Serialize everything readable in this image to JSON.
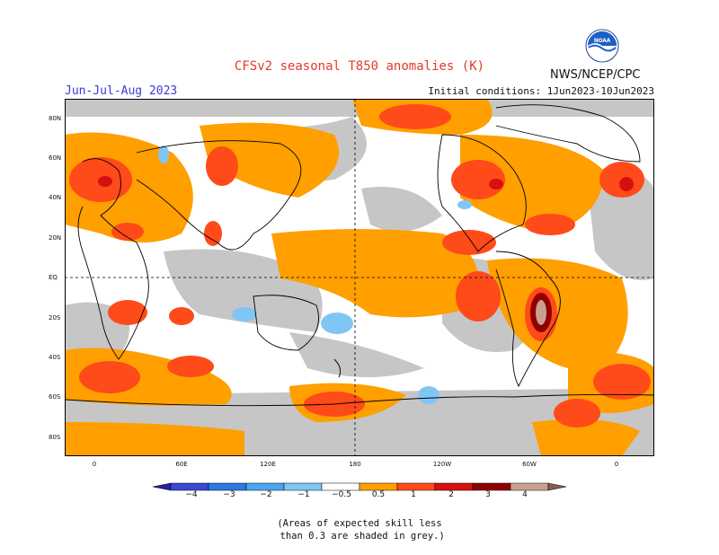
{
  "title": "CFSv2 seasonal T850 anomalies (K)",
  "season": "Jun-Jul-Aug 2023",
  "initial_conditions": "Initial conditions: 1Jun2023-10Jun2023",
  "organization": "NWS/NCEP/CPC",
  "logo_text": "NOAA",
  "lat_labels": [
    "80N",
    "60N",
    "40N",
    "20N",
    "EQ",
    "20S",
    "40S",
    "60S",
    "80S"
  ],
  "lon_labels": [
    "0",
    "60E",
    "120E",
    "180",
    "120W",
    "60W",
    "0"
  ],
  "colorbar": {
    "labels": [
      "−4",
      "−3",
      "−2",
      "−1",
      "−0.5",
      "0.5",
      "1",
      "2",
      "3",
      "4"
    ],
    "colors": [
      "#2a1da6",
      "#3a48d4",
      "#2b78e0",
      "#4aa6f0",
      "#80c6f5",
      "#ffffff",
      "#ff9f00",
      "#ff4a1a",
      "#d61010",
      "#8f0000",
      "#caa090",
      "#8b5a4f"
    ],
    "skill_shade_color": "#c6c6c6"
  },
  "legend_note": "(Areas of expected skill less\n than 0.3 are shaded in grey.)"
}
